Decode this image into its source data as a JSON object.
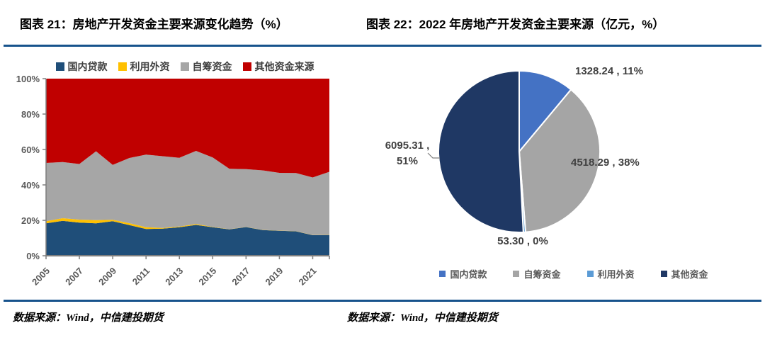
{
  "page": {
    "left_title": "图表 21：房地产开发资金主要来源变化趋势（%）",
    "right_title": "图表 22：2022 年房地产开发资金主要来源（亿元，%）",
    "left_source": "数据来源：Wind，中信建投期货",
    "right_source": "数据来源：Wind，中信建投期货",
    "accent_rule_color": "#17538C"
  },
  "chart_data": [
    {
      "type": "area",
      "stacked": true,
      "title": "图表 21：房地产开发资金主要来源变化趋势（%）",
      "x": [
        2005,
        2006,
        2007,
        2008,
        2009,
        2010,
        2011,
        2012,
        2013,
        2014,
        2015,
        2016,
        2017,
        2018,
        2019,
        2020,
        2021,
        2022
      ],
      "x_tick_labels": [
        "2005",
        "2007",
        "2009",
        "2011",
        "2013",
        "2015",
        "2017",
        "2019",
        "2021"
      ],
      "ylim": [
        0,
        100
      ],
      "y_ticks": [
        "0%",
        "20%",
        "40%",
        "60%",
        "80%",
        "100%"
      ],
      "grid": false,
      "legend_position": "top",
      "series": [
        {
          "key": "loans",
          "name": "国内贷款",
          "color": "#1F4E79",
          "values": [
            18.3,
            19.7,
            18.7,
            18.3,
            19.5,
            17.3,
            15.1,
            15.3,
            16.1,
            17.4,
            16.1,
            14.9,
            16.2,
            14.5,
            14.1,
            13.8,
            11.6,
            11.7
          ]
        },
        {
          "key": "foreign",
          "name": "利用外资",
          "color": "#FFC000",
          "values": [
            1.2,
            1.5,
            1.7,
            1.8,
            0.8,
            1.1,
            1.0,
            0.4,
            0.4,
            0.5,
            0.2,
            0.1,
            0.1,
            0.1,
            0.1,
            0.1,
            0.1,
            0.1
          ]
        },
        {
          "key": "self",
          "name": "自筹资金",
          "color": "#A6A6A6",
          "values": [
            32.9,
            31.7,
            31.4,
            38.9,
            31.0,
            36.8,
            41.0,
            40.5,
            38.8,
            41.3,
            39.2,
            34.1,
            32.6,
            33.6,
            32.6,
            32.8,
            32.5,
            35.6
          ]
        },
        {
          "key": "other",
          "name": "其他资金来源",
          "color": "#C00000",
          "values": [
            47.6,
            47.1,
            48.2,
            41.0,
            48.7,
            44.8,
            42.9,
            43.8,
            44.7,
            40.8,
            44.5,
            50.9,
            51.1,
            51.8,
            53.2,
            53.3,
            55.8,
            52.6
          ]
        }
      ]
    },
    {
      "type": "pie",
      "title": "图表 22：2022 年房地产开发资金主要来源（亿元，%）",
      "start_angle_deg": 0,
      "direction": "clockwise",
      "legend_position": "bottom",
      "slices": [
        {
          "key": "loans",
          "name": "国内贷款",
          "value": 1328.24,
          "pct": "11%",
          "color": "#4472C4",
          "label": "1328.24 , 11%"
        },
        {
          "key": "self",
          "name": "自筹资金",
          "value": 4518.29,
          "pct": "38%",
          "color": "#A5A5A5",
          "label": "4518.29 , 38%"
        },
        {
          "key": "foreign",
          "name": "利用外资",
          "value": 53.3,
          "pct": "0%",
          "color": "#5B9BD5",
          "label": "53.30 , 0%"
        },
        {
          "key": "other",
          "name": "其他资金",
          "value": 6095.31,
          "pct": "51%",
          "color": "#1F3864",
          "label": "6095.31 , 51%",
          "label_line1": "6095.31 ,",
          "label_line2": "51%"
        }
      ]
    }
  ]
}
